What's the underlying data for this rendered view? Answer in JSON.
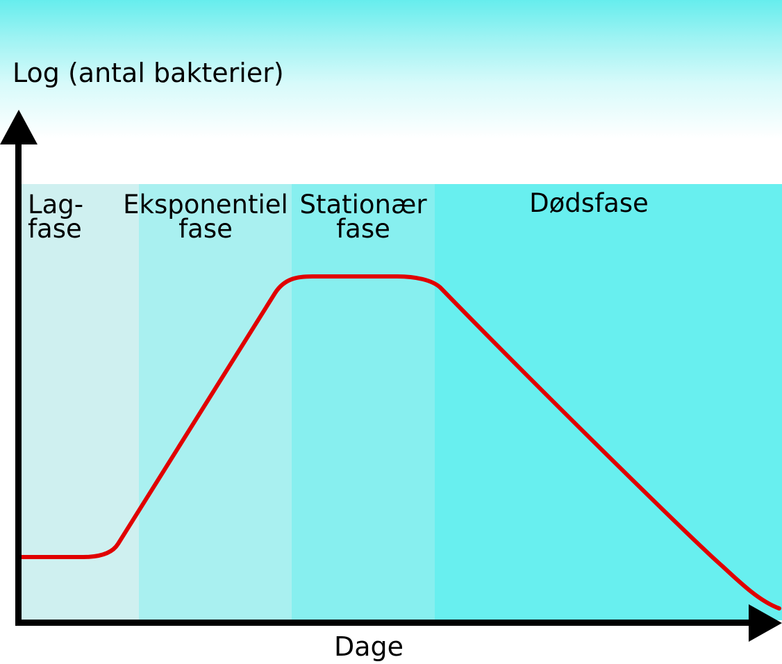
{
  "diagram": {
    "y_axis_label": "Log (antal bakterier)",
    "x_axis_label": "Dage",
    "phases": [
      {
        "line1": "Lag-",
        "line2": "fase",
        "color": "#cff0f0"
      },
      {
        "line1": "Eksponentiel",
        "line2": "fase",
        "color": "#a9f0f0"
      },
      {
        "line1": "Stationær",
        "line2": "fase",
        "color": "#87efef"
      },
      {
        "line1": "Dødsfase",
        "line2": "",
        "color": "#68efef"
      }
    ],
    "curve_color": "#e00000",
    "axis_color": "#000000",
    "background_top_color": "#66eded"
  }
}
